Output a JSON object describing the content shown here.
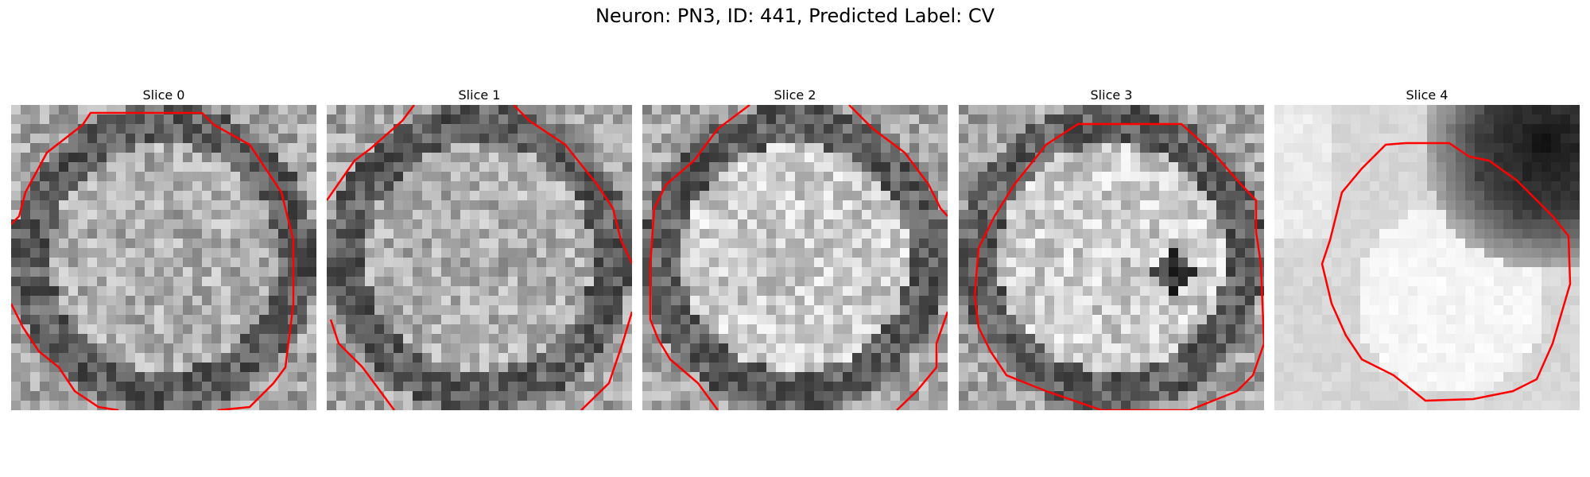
{
  "figure": {
    "title": "Neuron: PN3, ID: 441, Predicted Label: CV"
  },
  "panels": [
    {
      "title": "Slice 0",
      "pattern": "ring"
    },
    {
      "title": "Slice 1",
      "pattern": "ring"
    },
    {
      "title": "Slice 2",
      "pattern": "ring-bright"
    },
    {
      "title": "Slice 3",
      "pattern": "ring-bright-dark-spot"
    },
    {
      "title": "Slice 4",
      "pattern": "bright-blob-dark-corner"
    }
  ],
  "colors": {
    "contour": "#ff0000"
  }
}
